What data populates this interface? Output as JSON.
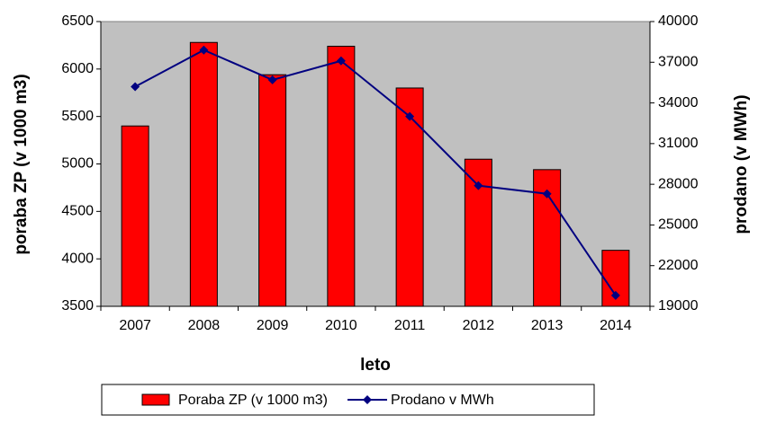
{
  "chart_data": {
    "type": "bar",
    "x_label": "leto",
    "y_label": "poraba ZP (v 1000 m3)",
    "y2_label": "prodano (v MWh)",
    "categories": [
      "2007",
      "2008",
      "2009",
      "2010",
      "2011",
      "2012",
      "2013",
      "2014"
    ],
    "series": [
      {
        "name": "Poraba ZP (v 1000 m3)",
        "type": "bar",
        "color": "#ff0000",
        "values": [
          5400,
          6280,
          5940,
          6240,
          5800,
          5050,
          4940,
          4090
        ]
      },
      {
        "name": "Prodano v MWh",
        "type": "line",
        "axis": "y2",
        "color": "#000080",
        "values": [
          35200,
          37900,
          35700,
          37100,
          33000,
          27900,
          27300,
          19800
        ]
      }
    ],
    "ylim": [
      3500,
      6500
    ],
    "yticks": [
      3500,
      4000,
      4500,
      5000,
      5500,
      6000,
      6500
    ],
    "y2lim": [
      19000,
      40000
    ],
    "y2ticks": [
      19000,
      22000,
      25000,
      28000,
      31000,
      34000,
      37000,
      40000
    ],
    "plot_background": "#c0c0c0",
    "grid": false,
    "legend": "bottom"
  }
}
